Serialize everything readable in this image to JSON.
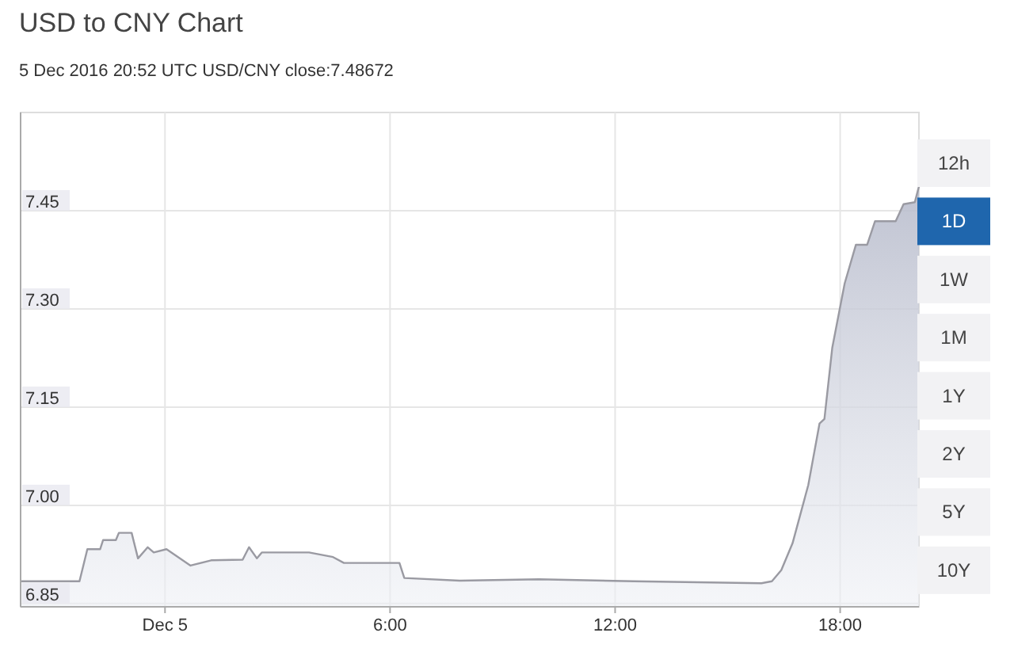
{
  "chart_data": {
    "type": "area",
    "title": "USD to CNY Chart",
    "subtitle": "5 Dec 2016 20:52 UTC   USD/CNY close:7.48672",
    "x": [
      -3.84,
      -2.28,
      -2.07,
      -1.73,
      -1.65,
      -1.31,
      -1.23,
      -0.89,
      -0.72,
      -0.46,
      -0.3,
      0.04,
      0.68,
      1.23,
      2.07,
      2.24,
      2.45,
      2.58,
      3.84,
      4.48,
      4.77,
      6.25,
      6.38,
      7.86,
      9.97,
      12.5,
      15.9,
      16.18,
      16.43,
      16.73,
      17.15,
      17.45,
      17.58,
      17.79,
      18.12,
      18.42,
      18.72,
      18.93,
      19.48,
      19.69,
      19.99,
      20.1
    ],
    "series": [
      {
        "color": "#9a9aa2",
        "values": [
          6.884,
          6.884,
          6.933,
          6.933,
          6.947,
          6.947,
          6.958,
          6.958,
          6.919,
          6.936,
          6.928,
          6.933,
          6.908,
          6.916,
          6.917,
          6.936,
          6.919,
          6.928,
          6.928,
          6.921,
          6.912,
          6.912,
          6.889,
          6.885,
          6.887,
          6.884,
          6.881,
          6.884,
          6.901,
          6.942,
          7.031,
          7.125,
          7.132,
          7.241,
          7.339,
          7.398,
          7.398,
          7.434,
          7.434,
          7.46,
          7.463,
          7.487
        ]
      }
    ],
    "xlim": [
      -3.85,
      20.1
    ],
    "ylim": [
      6.845,
      7.6
    ],
    "xticks": [
      {
        "value": 0,
        "label": "Dec 5"
      },
      {
        "value": 6,
        "label": "6:00"
      },
      {
        "value": 12,
        "label": "12:00"
      },
      {
        "value": 18,
        "label": "18:00"
      }
    ],
    "yticks": [
      6.85,
      {
        "value": 7,
        "label": "7.00"
      },
      {
        "value": 7.15,
        "label": "7.15"
      },
      {
        "value": 7.3,
        "label": "7.30"
      },
      {
        "value": 7.45,
        "label": "7.45"
      }
    ],
    "grid": true,
    "annotations": [
      "12h",
      "1D",
      "1W",
      "1M",
      "1Y",
      "2Y",
      "5Y",
      "10Y"
    ]
  }
}
